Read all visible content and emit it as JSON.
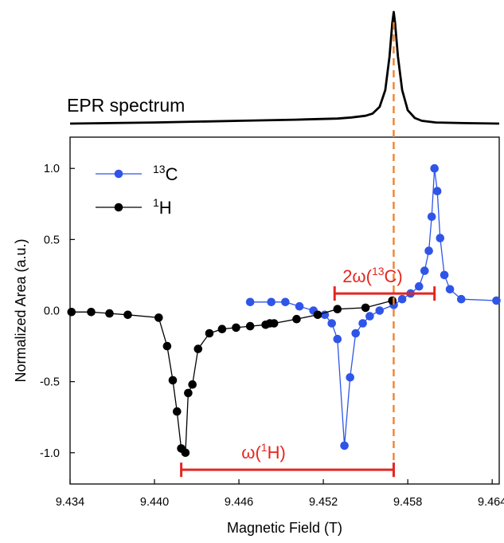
{
  "colors": {
    "c13": "#2f55e8",
    "h1": "#000000",
    "annotation": "#e52620",
    "dashed": "#f0832e"
  },
  "chart_data": [
    {
      "type": "line",
      "title": "EPR spectrum",
      "description_panel": "top",
      "x": [
        9.434,
        9.44,
        9.446,
        9.45,
        9.453,
        9.454,
        9.455,
        9.4555,
        9.456,
        9.4564,
        9.4567,
        9.4569,
        9.457,
        9.4571,
        9.4573,
        9.4576,
        9.458,
        9.4585,
        9.459,
        9.46,
        9.462,
        9.4645
      ],
      "y": [
        0.0,
        0.01,
        0.025,
        0.035,
        0.045,
        0.055,
        0.07,
        0.09,
        0.15,
        0.3,
        0.6,
        0.9,
        1.0,
        0.9,
        0.6,
        0.3,
        0.12,
        0.05,
        0.025,
        0.01,
        0.004,
        0.0
      ],
      "xlim": [
        9.434,
        9.4645
      ],
      "ylim": [
        0,
        1
      ]
    },
    {
      "type": "line",
      "description_panel": "bottom",
      "xlabel": "Magnetic Field (T)",
      "ylabel": "Normalized Area (a.u.)",
      "xlim": [
        9.434,
        9.4645
      ],
      "ylim": [
        -1.22,
        1.22
      ],
      "xticks": [
        9.434,
        9.44,
        9.446,
        9.452,
        9.458,
        9.464
      ],
      "xtick_labels": [
        "9.434",
        "9.440",
        "9.446",
        "9.452",
        "9.458",
        "9.464"
      ],
      "yticks": [
        -1.0,
        -0.5,
        0.0,
        0.5,
        1.0
      ],
      "ytick_labels": [
        "-1.0",
        "-0.5",
        "0.0",
        "0.5",
        "1.0"
      ],
      "legend_position": "top-left",
      "series": [
        {
          "name_prefix": "13",
          "name_suffix": "C",
          "color": "#2f55e8",
          "x": [
            9.4468,
            9.4483,
            9.4493,
            9.4503,
            9.4513,
            9.4521,
            9.4526,
            9.453,
            9.4535,
            9.4539,
            9.4543,
            9.4548,
            9.4553,
            9.456,
            9.457,
            9.4576,
            9.4582,
            9.4588,
            9.4592,
            9.4595,
            9.4597,
            9.4599,
            9.4601,
            9.4603,
            9.4606,
            9.461,
            9.4618,
            9.4643
          ],
          "y": [
            0.06,
            0.06,
            0.06,
            0.03,
            0.0,
            -0.03,
            -0.09,
            -0.2,
            -0.95,
            -0.47,
            -0.16,
            -0.09,
            -0.04,
            0.0,
            0.04,
            0.08,
            0.12,
            0.17,
            0.28,
            0.42,
            0.66,
            1.0,
            0.84,
            0.51,
            0.25,
            0.15,
            0.08,
            0.07
          ]
        },
        {
          "name_prefix": "1",
          "name_suffix": "H",
          "color": "#000000",
          "x": [
            9.4341,
            9.4355,
            9.4368,
            9.4381,
            9.4403,
            9.4409,
            9.4413,
            9.4416,
            9.4419,
            9.4422,
            9.4424,
            9.4427,
            9.4431,
            9.4439,
            9.4448,
            9.4458,
            9.4468,
            9.4479,
            9.4482,
            9.4485,
            9.4501,
            9.4516,
            9.453,
            9.455,
            9.4569
          ],
          "y": [
            -0.01,
            -0.01,
            -0.02,
            -0.03,
            -0.05,
            -0.25,
            -0.49,
            -0.71,
            -0.97,
            -1.0,
            -0.58,
            -0.52,
            -0.27,
            -0.16,
            -0.13,
            -0.12,
            -0.11,
            -0.1,
            -0.09,
            -0.09,
            -0.06,
            -0.03,
            0.01,
            0.02,
            0.07
          ]
        }
      ],
      "annotations": [
        {
          "label_prefix": "2ω(",
          "label_sup": "13",
          "label_suffix": "C)",
          "x_start": 9.4528,
          "x_end": 9.4599,
          "y": 0.12
        },
        {
          "label_prefix": "ω(",
          "label_sup": "1",
          "label_suffix": "H)",
          "x_start": 9.4419,
          "x_end": 9.457,
          "y": -1.12
        }
      ],
      "reference_line_x": 9.457
    }
  ]
}
